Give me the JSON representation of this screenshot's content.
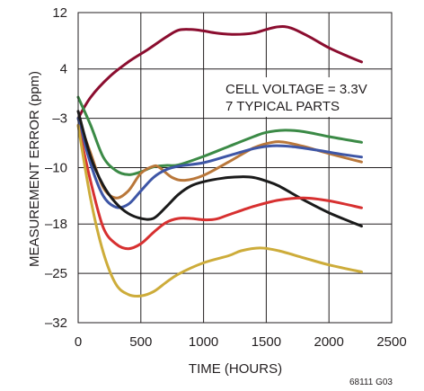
{
  "chart_data": {
    "type": "line",
    "title": "",
    "xlabel": "TIME (HOURS)",
    "ylabel": "MEASUREMENT ERROR (ppm)",
    "xlim": [
      0,
      2500
    ],
    "ylim": [
      -32,
      12
    ],
    "x_ticks": [
      0,
      500,
      1000,
      1500,
      2000,
      2500
    ],
    "x_tick_labels": [
      "0",
      "500",
      "1000",
      "1500",
      "2000",
      "2500"
    ],
    "y_ticks": [
      12,
      4,
      -3,
      -10,
      -18,
      -25,
      -32
    ],
    "y_tick_labels": [
      "12",
      "4",
      "–3",
      "–10",
      "–18",
      "–25",
      "–32"
    ],
    "grid": true,
    "annotations": [
      "CELL VOLTAGE = 3.3V",
      "7 TYPICAL PARTS"
    ],
    "figure_code": "68111 G03",
    "series": [
      {
        "color": "#8b0d2f",
        "points": [
          [
            0,
            -3
          ],
          [
            100,
            0
          ],
          [
            250,
            2.9
          ],
          [
            400,
            5
          ],
          [
            550,
            6.7
          ],
          [
            700,
            8.5
          ],
          [
            800,
            9.5
          ],
          [
            900,
            9.6
          ],
          [
            1000,
            9.4
          ],
          [
            1100,
            9.1
          ],
          [
            1250,
            8.9
          ],
          [
            1400,
            9.1
          ],
          [
            1500,
            9.6
          ],
          [
            1600,
            10
          ],
          [
            1700,
            9.8
          ],
          [
            1850,
            8.5
          ],
          [
            2000,
            7
          ],
          [
            2150,
            5.8
          ],
          [
            2260,
            5
          ]
        ]
      },
      {
        "color": "#3b8a46",
        "points": [
          [
            0,
            0
          ],
          [
            100,
            -4
          ],
          [
            200,
            -8.5
          ],
          [
            300,
            -10.4
          ],
          [
            400,
            -11
          ],
          [
            500,
            -10.6
          ],
          [
            600,
            -9.9
          ],
          [
            700,
            -9.7
          ],
          [
            800,
            -9.6
          ],
          [
            1000,
            -8.4
          ],
          [
            1200,
            -7
          ],
          [
            1400,
            -5.6
          ],
          [
            1500,
            -5
          ],
          [
            1650,
            -4.7
          ],
          [
            1800,
            -4.9
          ],
          [
            2000,
            -5.6
          ],
          [
            2260,
            -6.4
          ]
        ]
      },
      {
        "color": "#b9773a",
        "points": [
          [
            0,
            -3
          ],
          [
            100,
            -8
          ],
          [
            200,
            -12.8
          ],
          [
            300,
            -14.3
          ],
          [
            400,
            -13.3
          ],
          [
            500,
            -10.8
          ],
          [
            600,
            -9.8
          ],
          [
            650,
            -10
          ],
          [
            750,
            -11.4
          ],
          [
            850,
            -11.8
          ],
          [
            1000,
            -11.1
          ],
          [
            1200,
            -9.2
          ],
          [
            1400,
            -7.2
          ],
          [
            1550,
            -6.4
          ],
          [
            1650,
            -6.4
          ],
          [
            1800,
            -7
          ],
          [
            2000,
            -8
          ],
          [
            2260,
            -9.2
          ]
        ]
      },
      {
        "color": "#3e56a6",
        "points": [
          [
            0,
            -3
          ],
          [
            100,
            -9.5
          ],
          [
            200,
            -14
          ],
          [
            300,
            -15.6
          ],
          [
            400,
            -15.2
          ],
          [
            500,
            -13.3
          ],
          [
            600,
            -11.4
          ],
          [
            700,
            -10.3
          ],
          [
            800,
            -9.8
          ],
          [
            1000,
            -9.3
          ],
          [
            1200,
            -8.3
          ],
          [
            1400,
            -7.3
          ],
          [
            1550,
            -6.9
          ],
          [
            1700,
            -7
          ],
          [
            1900,
            -7.5
          ],
          [
            2100,
            -8.1
          ],
          [
            2260,
            -8.5
          ]
        ]
      },
      {
        "color": "#1a1a1a",
        "points": [
          [
            0,
            -2
          ],
          [
            100,
            -8.5
          ],
          [
            200,
            -12.5
          ],
          [
            300,
            -15
          ],
          [
            400,
            -16.5
          ],
          [
            500,
            -17.2
          ],
          [
            600,
            -17.2
          ],
          [
            700,
            -15.6
          ],
          [
            800,
            -13.8
          ],
          [
            900,
            -12.6
          ],
          [
            1000,
            -12
          ],
          [
            1150,
            -11.5
          ],
          [
            1300,
            -11.3
          ],
          [
            1400,
            -11.4
          ],
          [
            1500,
            -11.9
          ],
          [
            1600,
            -12.6
          ],
          [
            1800,
            -14.6
          ],
          [
            2000,
            -16.4
          ],
          [
            2260,
            -18.3
          ]
        ]
      },
      {
        "color": "#d73030",
        "points": [
          [
            0,
            -4
          ],
          [
            100,
            -12
          ],
          [
            200,
            -18.5
          ],
          [
            300,
            -20.8
          ],
          [
            400,
            -21.5
          ],
          [
            500,
            -20.8
          ],
          [
            600,
            -19.2
          ],
          [
            700,
            -17.8
          ],
          [
            800,
            -17.2
          ],
          [
            900,
            -17.2
          ],
          [
            1000,
            -17.4
          ],
          [
            1100,
            -17.3
          ],
          [
            1200,
            -16.7
          ],
          [
            1400,
            -15.5
          ],
          [
            1600,
            -14.6
          ],
          [
            1800,
            -14.3
          ],
          [
            2000,
            -14.7
          ],
          [
            2260,
            -15.7
          ]
        ]
      },
      {
        "color": "#cdac3a",
        "points": [
          [
            0,
            -4
          ],
          [
            100,
            -14.5
          ],
          [
            200,
            -22
          ],
          [
            300,
            -26.5
          ],
          [
            400,
            -28
          ],
          [
            500,
            -28.2
          ],
          [
            600,
            -27.6
          ],
          [
            700,
            -26.3
          ],
          [
            800,
            -25.1
          ],
          [
            1000,
            -23.5
          ],
          [
            1200,
            -22.5
          ],
          [
            1300,
            -21.8
          ],
          [
            1450,
            -21.4
          ],
          [
            1600,
            -21.8
          ],
          [
            1800,
            -22.8
          ],
          [
            2000,
            -23.8
          ],
          [
            2260,
            -24.8
          ]
        ]
      }
    ]
  }
}
